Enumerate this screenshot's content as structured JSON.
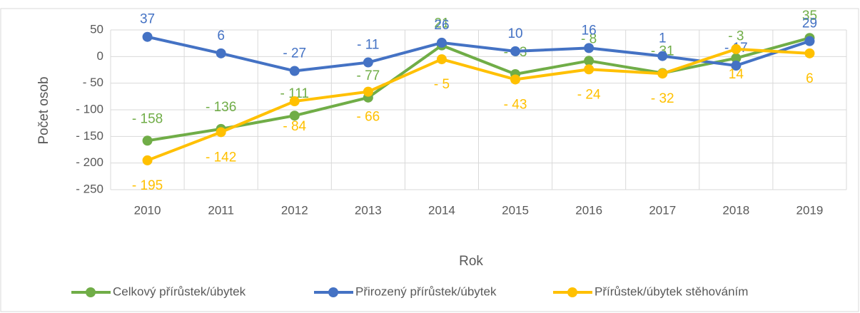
{
  "chart_data": {
    "type": "line",
    "x_label": "Rok",
    "y_label": "Počet osob",
    "categories": [
      "2010",
      "2011",
      "2012",
      "2013",
      "2014",
      "2015",
      "2016",
      "2017",
      "2018",
      "2019"
    ],
    "series": [
      {
        "name": "Celkový přírůstek/úbytek",
        "color": "#70ad47",
        "values": [
          -158,
          -136,
          -111,
          -77,
          21,
          -33,
          -8,
          -31,
          -3,
          35
        ],
        "value_labels": [
          "- 158",
          "- 136",
          "- 111",
          "- 77",
          "21",
          "- 33",
          "- 8",
          "- 31",
          "- 3",
          "35"
        ]
      },
      {
        "name": "Přirozený přírůstek/úbytek",
        "color": "#4472c4",
        "values": [
          37,
          6,
          -27,
          -11,
          26,
          10,
          16,
          1,
          -17,
          29
        ],
        "value_labels": [
          "37",
          "6",
          "- 27",
          "- 11",
          "26",
          "10",
          "16",
          "1",
          "- 17",
          "29"
        ]
      },
      {
        "name": "Přírůstek/úbytek stěhováním",
        "color": "#ffc000",
        "values": [
          -195,
          -142,
          -84,
          -66,
          -5,
          -43,
          -24,
          -32,
          14,
          6
        ],
        "value_labels": [
          "- 195",
          "- 142",
          "- 84",
          "- 66",
          "- 5",
          "- 43",
          "- 24",
          "- 32",
          "14",
          "6"
        ]
      }
    ],
    "ylim": [
      -250,
      50
    ],
    "yticks": [
      {
        "value": -250,
        "label": "- 250"
      },
      {
        "value": -200,
        "label": "- 200"
      },
      {
        "value": -150,
        "label": "- 150"
      },
      {
        "value": -100,
        "label": "- 100"
      },
      {
        "value": -50,
        "label": "- 50"
      },
      0,
      50
    ],
    "grid": true,
    "legend": "bottom"
  }
}
